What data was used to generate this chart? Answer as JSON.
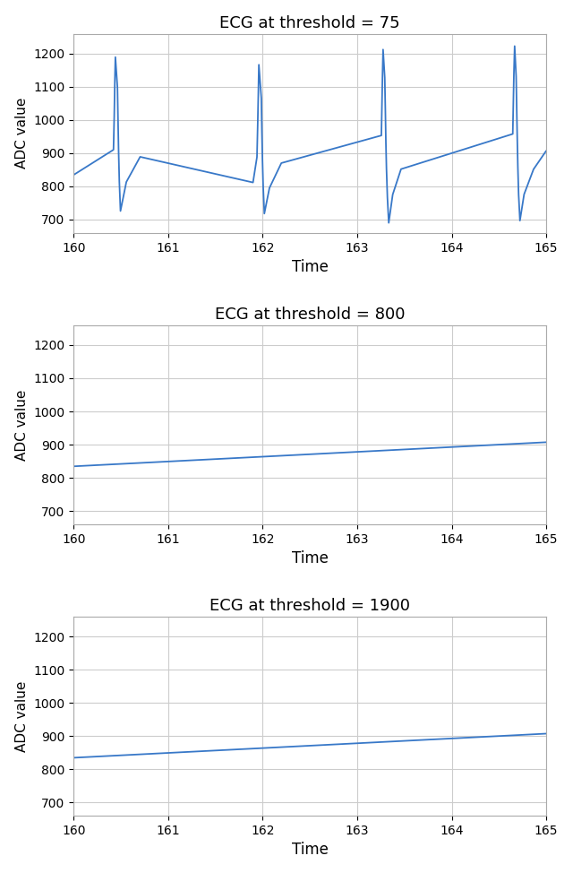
{
  "titles": [
    "ECG at threshold = 75",
    "ECG at threshold = 800",
    "ECG at threshold = 1900"
  ],
  "xlabel": "Time",
  "ylabel": "ADC value",
  "xlim": [
    160,
    165
  ],
  "ylim": [
    660,
    1260
  ],
  "yticks": [
    700,
    800,
    900,
    1000,
    1100,
    1200
  ],
  "xticks": [
    160,
    161,
    162,
    163,
    164,
    165
  ],
  "line_color": "#3878C8",
  "line_width": 1.3,
  "figsize": [
    6.4,
    9.74
  ],
  "dpi": 100,
  "background_color": "white",
  "grid_color": "#cccccc",
  "beat_times": [
    160.45,
    161.97,
    163.28,
    164.67
  ],
  "baseline": 830,
  "thresholds": [
    75,
    800,
    1900
  ]
}
